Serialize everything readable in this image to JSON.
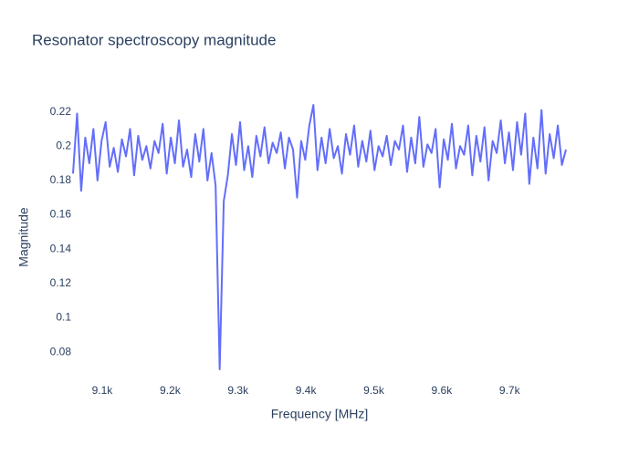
{
  "chart_data": {
    "type": "line",
    "title": "Resonator spectroscopy magnitude",
    "x_label": "Frequency [MHz]",
    "y_label": "Magnitude",
    "x": [
      9057,
      9063,
      9069,
      9075,
      9081,
      9087,
      9093,
      9099,
      9105,
      9111,
      9117,
      9123,
      9129,
      9135,
      9141,
      9147,
      9153,
      9159,
      9165,
      9171,
      9177,
      9183,
      9189,
      9195,
      9201,
      9207,
      9213,
      9219,
      9225,
      9231,
      9237,
      9243,
      9249,
      9255,
      9261,
      9267,
      9273,
      9279,
      9285,
      9291,
      9297,
      9303,
      9309,
      9315,
      9321,
      9327,
      9333,
      9339,
      9345,
      9351,
      9357,
      9363,
      9369,
      9375,
      9381,
      9387,
      9393,
      9399,
      9405,
      9411,
      9417,
      9423,
      9429,
      9435,
      9441,
      9447,
      9453,
      9459,
      9465,
      9471,
      9477,
      9483,
      9489,
      9495,
      9501,
      9507,
      9513,
      9519,
      9525,
      9531,
      9537,
      9543,
      9549,
      9555,
      9561,
      9567,
      9573,
      9579,
      9585,
      9591,
      9597,
      9603,
      9609,
      9615,
      9621,
      9627,
      9633,
      9639,
      9645,
      9651,
      9657,
      9663,
      9669,
      9675,
      9681,
      9687,
      9693,
      9699,
      9705,
      9711,
      9717,
      9723,
      9729,
      9735,
      9741,
      9747,
      9753,
      9759,
      9765,
      9771,
      9777,
      9783
    ],
    "series": [
      {
        "color": "#636efa",
        "values": [
          0.184,
          0.219,
          0.174,
          0.205,
          0.19,
          0.21,
          0.18,
          0.203,
          0.214,
          0.188,
          0.199,
          0.185,
          0.204,
          0.194,
          0.21,
          0.183,
          0.206,
          0.192,
          0.2,
          0.187,
          0.203,
          0.196,
          0.213,
          0.184,
          0.205,
          0.19,
          0.215,
          0.188,
          0.198,
          0.182,
          0.207,
          0.191,
          0.21,
          0.18,
          0.196,
          0.177,
          0.07,
          0.168,
          0.183,
          0.207,
          0.189,
          0.214,
          0.186,
          0.2,
          0.182,
          0.206,
          0.194,
          0.211,
          0.19,
          0.202,
          0.196,
          0.208,
          0.187,
          0.205,
          0.198,
          0.17,
          0.203,
          0.192,
          0.212,
          0.224,
          0.186,
          0.205,
          0.19,
          0.21,
          0.193,
          0.2,
          0.184,
          0.207,
          0.195,
          0.212,
          0.188,
          0.203,
          0.191,
          0.209,
          0.186,
          0.2,
          0.194,
          0.206,
          0.189,
          0.203,
          0.198,
          0.212,
          0.185,
          0.205,
          0.19,
          0.217,
          0.188,
          0.201,
          0.196,
          0.21,
          0.176,
          0.204,
          0.192,
          0.213,
          0.187,
          0.2,
          0.195,
          0.212,
          0.183,
          0.206,
          0.191,
          0.211,
          0.18,
          0.203,
          0.196,
          0.215,
          0.19,
          0.208,
          0.186,
          0.214,
          0.195,
          0.219,
          0.178,
          0.205,
          0.187,
          0.221,
          0.184,
          0.207,
          0.193,
          0.212,
          0.189,
          0.198
        ]
      }
    ],
    "xlim": [
      9057,
      9783
    ],
    "xticks": [
      {
        "value": 9100,
        "label": "9.1k"
      },
      {
        "value": 9200,
        "label": "9.2k"
      },
      {
        "value": 9300,
        "label": "9.3k"
      },
      {
        "value": 9400,
        "label": "9.4k"
      },
      {
        "value": 9500,
        "label": "9.5k"
      },
      {
        "value": 9600,
        "label": "9.6k"
      },
      {
        "value": 9700,
        "label": "9.7k"
      }
    ],
    "ylim": [
      0.062,
      0.232
    ],
    "yticks": [
      0.08,
      0.1,
      0.12,
      0.14,
      0.16,
      0.18,
      0.2,
      0.22
    ],
    "grid": false
  }
}
